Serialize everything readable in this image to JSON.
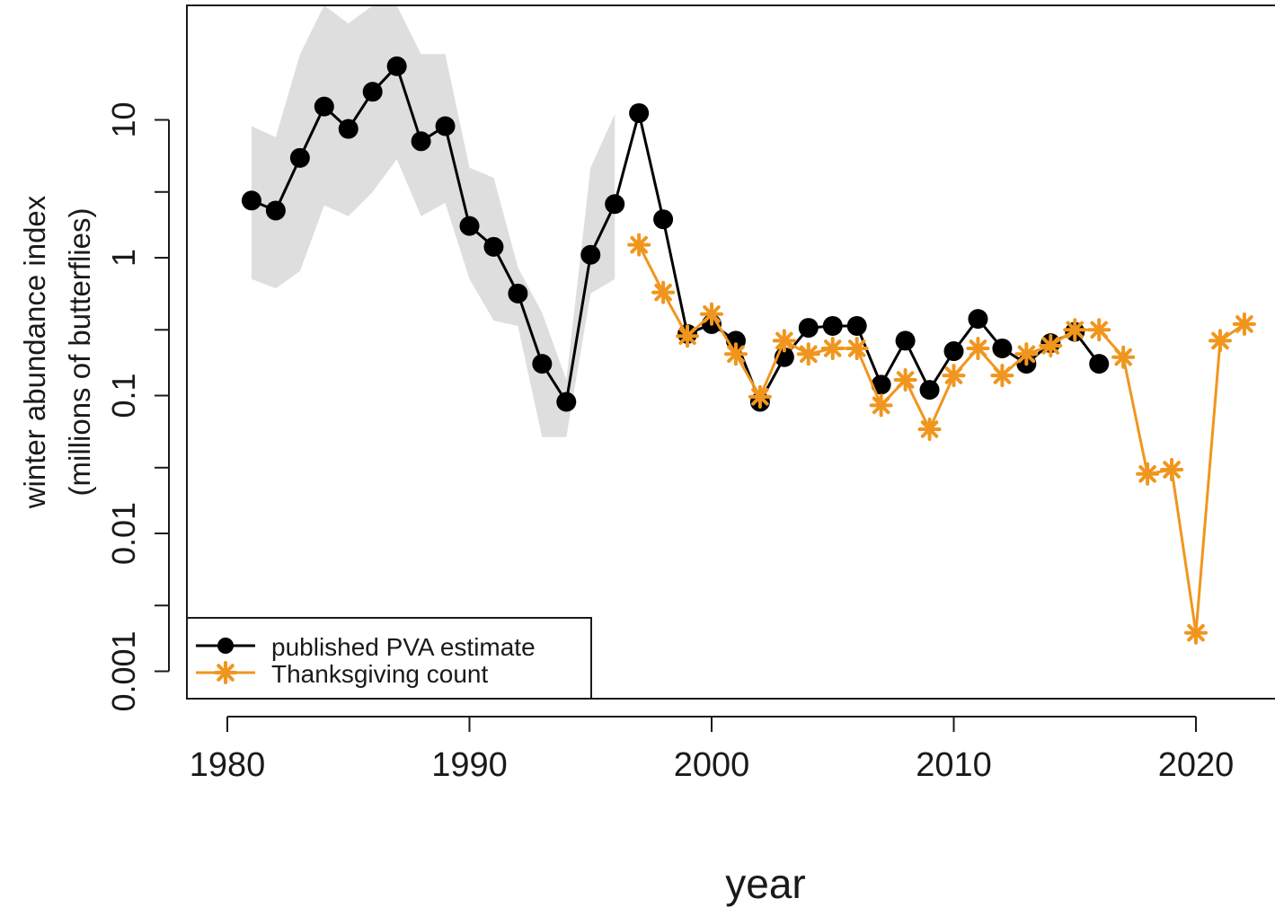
{
  "chart_data": {
    "type": "line",
    "xlabel": "year",
    "ylabel": [
      "winter abundance index",
      "(millions of butterflies)"
    ],
    "y_scale": "log",
    "xlim": [
      1978.3,
      1982.0
    ],
    "ylim": [
      0.0007,
      60
    ],
    "x_ticks": [
      1980,
      1990,
      2000,
      2010,
      2020
    ],
    "x_tick_labels": [
      "1980",
      "1990",
      "2000",
      "2010",
      "2020"
    ],
    "y_ticks": [
      0.001,
      0.01,
      0.1,
      1,
      10
    ],
    "y_tick_labels": [
      "0.001",
      "0.01",
      "0.1",
      "1",
      "10"
    ],
    "y_minor_ticks": [
      0.003,
      0.03,
      0.3,
      3
    ],
    "legend_position": "bottom-left",
    "colors": {
      "pva": "#000000",
      "thanksgiving": "#f0961e",
      "band": "#dedede"
    },
    "series": [
      {
        "name": "published PVA estimate",
        "marker": "circle",
        "color": "#000000",
        "x": [
          1981,
          1982,
          1983,
          1984,
          1985,
          1986,
          1987,
          1988,
          1989,
          1990,
          1991,
          1992,
          1993,
          1994,
          1995,
          1996,
          1997,
          1998,
          1999,
          2000,
          2001,
          2002,
          2003,
          2004,
          2005,
          2006,
          2007,
          2008,
          2009,
          2010,
          2011,
          2012,
          2013,
          2014,
          2015,
          2016
        ],
        "y": [
          2.6,
          2.2,
          5.3,
          12.5,
          8.6,
          16.0,
          24.5,
          7.0,
          9.0,
          1.7,
          1.2,
          0.55,
          0.17,
          0.09,
          1.05,
          2.45,
          11.2,
          1.9,
          0.28,
          0.33,
          0.25,
          0.09,
          0.19,
          0.31,
          0.32,
          0.32,
          0.12,
          0.25,
          0.11,
          0.21,
          0.36,
          0.22,
          0.17,
          0.24,
          0.29,
          0.17
        ],
        "band_lower": [
          0.7,
          0.6,
          0.8,
          2.4,
          2.0,
          3.0,
          5.2,
          2.0,
          2.5,
          0.7,
          0.35,
          0.32,
          0.05,
          0.05,
          0.55,
          0.7,
          null,
          null,
          null,
          null,
          null,
          null,
          null,
          null,
          null,
          null,
          null,
          null,
          null,
          null,
          null,
          null,
          null,
          null,
          null,
          null
        ],
        "band_upper": [
          9.0,
          7.5,
          30.0,
          70.0,
          50.0,
          75.0,
          110.0,
          30.0,
          30.0,
          4.5,
          3.8,
          0.85,
          0.4,
          0.13,
          4.5,
          11.0,
          null,
          null,
          null,
          null,
          null,
          null,
          null,
          null,
          null,
          null,
          null,
          null,
          null,
          null,
          null,
          null,
          null,
          null,
          null,
          null
        ]
      },
      {
        "name": "Thanksgiving count",
        "marker": "asterisk",
        "color": "#f0961e",
        "x": [
          1997,
          1998,
          1999,
          2000,
          2001,
          2002,
          2003,
          2004,
          2005,
          2006,
          2007,
          2008,
          2009,
          2010,
          2011,
          2012,
          2013,
          2014,
          2015,
          2016,
          2017,
          2018,
          2019,
          2020,
          2021,
          2022
        ],
        "y": [
          1.24,
          0.56,
          0.27,
          0.39,
          0.2,
          0.098,
          0.25,
          0.2,
          0.22,
          0.22,
          0.085,
          0.13,
          0.057,
          0.14,
          0.22,
          0.14,
          0.2,
          0.23,
          0.3,
          0.3,
          0.19,
          0.027,
          0.029,
          0.0019,
          0.25,
          0.33
        ]
      }
    ]
  }
}
